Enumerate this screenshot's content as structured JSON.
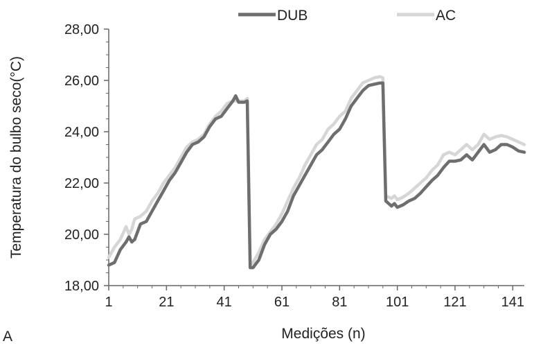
{
  "chart_data": {
    "type": "line",
    "panel_label": "A",
    "xlabel": "Medições (n)",
    "ylabel": "Temperatura do bulbo seco(°C)",
    "xlim": [
      1,
      145
    ],
    "ylim": [
      18,
      28
    ],
    "x_ticks": [
      1,
      21,
      41,
      61,
      81,
      101,
      121,
      141
    ],
    "y_ticks": [
      "18,00",
      "20,00",
      "22,00",
      "24,00",
      "26,00",
      "28,00"
    ],
    "legend_position": "top",
    "grid": false,
    "series": [
      {
        "name": "DUB",
        "color": "#6e6e6e",
        "points": [
          [
            1,
            18.8
          ],
          [
            3,
            18.9
          ],
          [
            5,
            19.4
          ],
          [
            7,
            19.7
          ],
          [
            8,
            19.9
          ],
          [
            9,
            19.7
          ],
          [
            10,
            19.8
          ],
          [
            12,
            20.4
          ],
          [
            14,
            20.5
          ],
          [
            16,
            20.9
          ],
          [
            18,
            21.3
          ],
          [
            20,
            21.7
          ],
          [
            22,
            22.1
          ],
          [
            24,
            22.4
          ],
          [
            26,
            22.8
          ],
          [
            28,
            23.2
          ],
          [
            30,
            23.5
          ],
          [
            32,
            23.6
          ],
          [
            34,
            23.8
          ],
          [
            36,
            24.2
          ],
          [
            38,
            24.5
          ],
          [
            40,
            24.6
          ],
          [
            42,
            24.9
          ],
          [
            44,
            25.2
          ],
          [
            45,
            25.4
          ],
          [
            46,
            25.15
          ],
          [
            48,
            25.15
          ],
          [
            49,
            25.2
          ],
          [
            50,
            18.7
          ],
          [
            51,
            18.7
          ],
          [
            53,
            19.0
          ],
          [
            55,
            19.6
          ],
          [
            57,
            20.0
          ],
          [
            59,
            20.2
          ],
          [
            61,
            20.5
          ],
          [
            63,
            20.9
          ],
          [
            65,
            21.5
          ],
          [
            67,
            21.9
          ],
          [
            69,
            22.3
          ],
          [
            71,
            22.7
          ],
          [
            73,
            23.1
          ],
          [
            75,
            23.3
          ],
          [
            77,
            23.6
          ],
          [
            79,
            23.9
          ],
          [
            81,
            24.1
          ],
          [
            83,
            24.5
          ],
          [
            85,
            25.0
          ],
          [
            87,
            25.3
          ],
          [
            89,
            25.6
          ],
          [
            91,
            25.8
          ],
          [
            93,
            25.85
          ],
          [
            95,
            25.9
          ],
          [
            96,
            25.9
          ],
          [
            97,
            21.3
          ],
          [
            99,
            21.1
          ],
          [
            100,
            21.2
          ],
          [
            101,
            21.05
          ],
          [
            103,
            21.15
          ],
          [
            105,
            21.3
          ],
          [
            107,
            21.4
          ],
          [
            109,
            21.6
          ],
          [
            111,
            21.85
          ],
          [
            113,
            22.1
          ],
          [
            115,
            22.3
          ],
          [
            117,
            22.6
          ],
          [
            119,
            22.85
          ],
          [
            121,
            22.85
          ],
          [
            123,
            22.9
          ],
          [
            125,
            23.1
          ],
          [
            127,
            22.9
          ],
          [
            129,
            23.2
          ],
          [
            131,
            23.5
          ],
          [
            133,
            23.2
          ],
          [
            135,
            23.3
          ],
          [
            137,
            23.5
          ],
          [
            139,
            23.5
          ],
          [
            141,
            23.4
          ],
          [
            143,
            23.25
          ],
          [
            145,
            23.2
          ]
        ]
      },
      {
        "name": "AC",
        "color": "#d6d6d6",
        "points": [
          [
            1,
            19.1
          ],
          [
            3,
            19.5
          ],
          [
            5,
            19.8
          ],
          [
            7,
            20.3
          ],
          [
            8,
            20.0
          ],
          [
            9,
            20.2
          ],
          [
            10,
            20.6
          ],
          [
            12,
            20.7
          ],
          [
            14,
            20.9
          ],
          [
            16,
            21.3
          ],
          [
            18,
            21.6
          ],
          [
            20,
            22.0
          ],
          [
            22,
            22.3
          ],
          [
            24,
            22.6
          ],
          [
            26,
            23.0
          ],
          [
            28,
            23.4
          ],
          [
            30,
            23.6
          ],
          [
            32,
            23.7
          ],
          [
            34,
            23.9
          ],
          [
            36,
            24.3
          ],
          [
            38,
            24.6
          ],
          [
            40,
            24.8
          ],
          [
            42,
            25.1
          ],
          [
            44,
            25.2
          ],
          [
            45,
            25.2
          ],
          [
            46,
            25.2
          ],
          [
            48,
            25.2
          ],
          [
            49,
            25.3
          ],
          [
            50,
            18.8
          ],
          [
            51,
            18.9
          ],
          [
            53,
            19.3
          ],
          [
            55,
            19.8
          ],
          [
            57,
            20.1
          ],
          [
            59,
            20.4
          ],
          [
            61,
            20.8
          ],
          [
            63,
            21.3
          ],
          [
            65,
            21.8
          ],
          [
            67,
            22.2
          ],
          [
            69,
            22.7
          ],
          [
            71,
            23.1
          ],
          [
            73,
            23.5
          ],
          [
            75,
            23.7
          ],
          [
            77,
            24.1
          ],
          [
            79,
            24.3
          ],
          [
            81,
            24.6
          ],
          [
            83,
            24.8
          ],
          [
            85,
            25.3
          ],
          [
            87,
            25.6
          ],
          [
            89,
            25.9
          ],
          [
            91,
            26.0
          ],
          [
            93,
            26.1
          ],
          [
            95,
            26.15
          ],
          [
            96,
            26.1
          ],
          [
            97,
            21.5
          ],
          [
            99,
            21.4
          ],
          [
            100,
            21.5
          ],
          [
            101,
            21.35
          ],
          [
            103,
            21.45
          ],
          [
            105,
            21.6
          ],
          [
            107,
            21.8
          ],
          [
            109,
            22.0
          ],
          [
            111,
            22.2
          ],
          [
            113,
            22.5
          ],
          [
            115,
            22.7
          ],
          [
            117,
            23.1
          ],
          [
            119,
            23.2
          ],
          [
            121,
            23.1
          ],
          [
            123,
            23.3
          ],
          [
            125,
            23.5
          ],
          [
            127,
            23.3
          ],
          [
            129,
            23.5
          ],
          [
            131,
            23.9
          ],
          [
            133,
            23.7
          ],
          [
            135,
            23.8
          ],
          [
            137,
            23.85
          ],
          [
            139,
            23.8
          ],
          [
            141,
            23.7
          ],
          [
            143,
            23.6
          ],
          [
            145,
            23.5
          ]
        ]
      }
    ]
  }
}
